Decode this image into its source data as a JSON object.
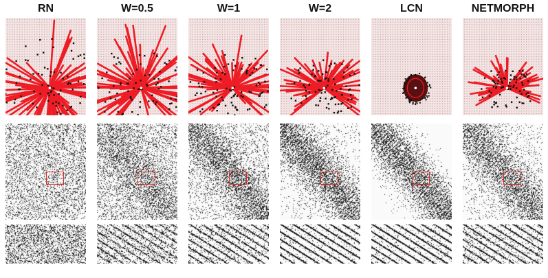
{
  "columns": [
    {
      "title": "RN",
      "spread": 1.0,
      "reach": 1.0,
      "density": 0.8,
      "mat_band": 0.0,
      "mat_noise": 0.55,
      "stripe_contrast": 0.0
    },
    {
      "title": "W=0.5",
      "spread": 0.85,
      "reach": 0.85,
      "density": 0.75,
      "mat_band": 0.45,
      "mat_noise": 0.45,
      "stripe_contrast": 0.6
    },
    {
      "title": "W=1",
      "spread": 0.65,
      "reach": 0.65,
      "density": 0.7,
      "mat_band": 0.7,
      "mat_noise": 0.3,
      "stripe_contrast": 0.8
    },
    {
      "title": "W=2",
      "spread": 0.45,
      "reach": 0.5,
      "density": 0.6,
      "mat_band": 0.9,
      "mat_noise": 0.12,
      "stripe_contrast": 1.0
    },
    {
      "title": "LCN",
      "spread": 0.0,
      "reach": 0.0,
      "density": 0.0,
      "mat_band": 1.0,
      "mat_noise": 0.0,
      "stripe_contrast": 1.0
    },
    {
      "title": "NETMORPH",
      "spread": 0.3,
      "reach": 0.35,
      "density": 0.5,
      "mat_band": 0.8,
      "mat_noise": 0.15,
      "stripe_contrast": 0.85
    }
  ],
  "colors": {
    "grid_dot": "#c9a0a0",
    "grid_bg": "#f3e4e4",
    "connection": "#ee1c24",
    "target_node": "#111111",
    "source_node": "#ffffff",
    "matrix_ink": "#222222",
    "zoom_box": "#e0281e"
  }
}
